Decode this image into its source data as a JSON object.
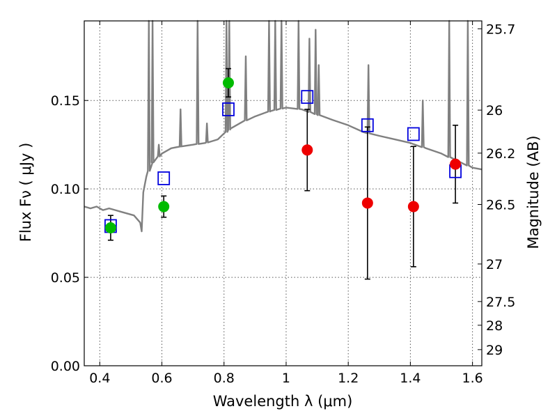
{
  "chart_data": {
    "type": "scatter",
    "xlabel": "Wavelength  λ (μm)",
    "ylabel": "Flux  Fν  ( μJy )",
    "ylabel_right": "Magnitude (AB)",
    "xlim": [
      0.35,
      1.63
    ],
    "ylim": [
      0.0,
      0.195
    ],
    "x_ticks": [
      0.4,
      0.6,
      0.8,
      1.0,
      1.2,
      1.4,
      1.6
    ],
    "x_tick_labels": [
      "0.4",
      "0.6",
      "0.8",
      "1",
      "1.2",
      "1.4",
      "1.6"
    ],
    "y_ticks": [
      0.0,
      0.05,
      0.1,
      0.15
    ],
    "y_tick_labels": [
      "0.00",
      "0.05",
      "0.10",
      "0.15"
    ],
    "right_ticks": [
      {
        "label": "25.7",
        "mag": 25.7
      },
      {
        "label": "26",
        "mag": 26.0
      },
      {
        "label": "26.2",
        "mag": 26.2
      },
      {
        "label": "26.5",
        "mag": 26.5
      },
      {
        "label": "27",
        "mag": 27.0
      },
      {
        "label": "27.5",
        "mag": 27.5
      },
      {
        "label": "28",
        "mag": 28.0
      },
      {
        "label": "29",
        "mag": 29.0
      }
    ],
    "grid": true,
    "colors": {
      "model": "#808080",
      "green": "#00bb00",
      "red": "#ee0000",
      "squares": "#0000dd",
      "errorbars": "#000000"
    },
    "model_spectrum": {
      "x": [
        0.35,
        0.37,
        0.39,
        0.41,
        0.43,
        0.45,
        0.47,
        0.49,
        0.51,
        0.53,
        0.535,
        0.54,
        0.55,
        0.57,
        0.6,
        0.63,
        0.66,
        0.7,
        0.74,
        0.78,
        0.82,
        0.86,
        0.9,
        0.95,
        1.0,
        1.05,
        1.1,
        1.15,
        1.2,
        1.25,
        1.3,
        1.35,
        1.4,
        1.45,
        1.5,
        1.55,
        1.6,
        1.63
      ],
      "y": [
        0.09,
        0.089,
        0.09,
        0.088,
        0.089,
        0.088,
        0.087,
        0.086,
        0.085,
        0.081,
        0.076,
        0.098,
        0.107,
        0.115,
        0.12,
        0.123,
        0.124,
        0.125,
        0.126,
        0.128,
        0.134,
        0.138,
        0.141,
        0.144,
        0.146,
        0.145,
        0.142,
        0.139,
        0.136,
        0.132,
        0.13,
        0.128,
        0.126,
        0.123,
        0.12,
        0.116,
        0.112,
        0.111
      ],
      "lines": [
        {
          "x": 0.558,
          "peak": 0.195
        },
        {
          "x": 0.57,
          "peak": 0.195
        },
        {
          "x": 0.59,
          "peak": 0.125
        },
        {
          "x": 0.66,
          "peak": 0.145
        },
        {
          "x": 0.715,
          "peak": 0.195
        },
        {
          "x": 0.745,
          "peak": 0.137
        },
        {
          "x": 0.808,
          "peak": 0.195
        },
        {
          "x": 0.817,
          "peak": 0.195
        },
        {
          "x": 0.87,
          "peak": 0.175
        },
        {
          "x": 0.945,
          "peak": 0.195
        },
        {
          "x": 0.965,
          "peak": 0.195
        },
        {
          "x": 0.985,
          "peak": 0.195
        },
        {
          "x": 1.04,
          "peak": 0.195
        },
        {
          "x": 1.075,
          "peak": 0.185
        },
        {
          "x": 1.095,
          "peak": 0.19
        },
        {
          "x": 1.105,
          "peak": 0.17
        },
        {
          "x": 1.265,
          "peak": 0.17
        },
        {
          "x": 1.44,
          "peak": 0.15
        },
        {
          "x": 1.525,
          "peak": 0.195
        },
        {
          "x": 1.585,
          "peak": 0.195
        }
      ]
    },
    "green_points": [
      {
        "x": 0.435,
        "y": 0.078,
        "yerr": 0.007
      },
      {
        "x": 0.606,
        "y": 0.09,
        "yerr": 0.006
      },
      {
        "x": 0.814,
        "y": 0.16,
        "yerr": 0.008
      }
    ],
    "red_points": [
      {
        "x": 1.068,
        "y": 0.122,
        "yerr": 0.023
      },
      {
        "x": 1.262,
        "y": 0.092,
        "yerr": 0.043
      },
      {
        "x": 1.41,
        "y": 0.09,
        "yerr": 0.034
      },
      {
        "x": 1.545,
        "y": 0.114,
        "yerr": 0.022
      }
    ],
    "model_squares": [
      {
        "x": 0.435,
        "y": 0.079
      },
      {
        "x": 0.606,
        "y": 0.106
      },
      {
        "x": 0.814,
        "y": 0.145
      },
      {
        "x": 1.068,
        "y": 0.152
      },
      {
        "x": 1.262,
        "y": 0.136
      },
      {
        "x": 1.41,
        "y": 0.131
      },
      {
        "x": 1.545,
        "y": 0.11
      }
    ]
  }
}
